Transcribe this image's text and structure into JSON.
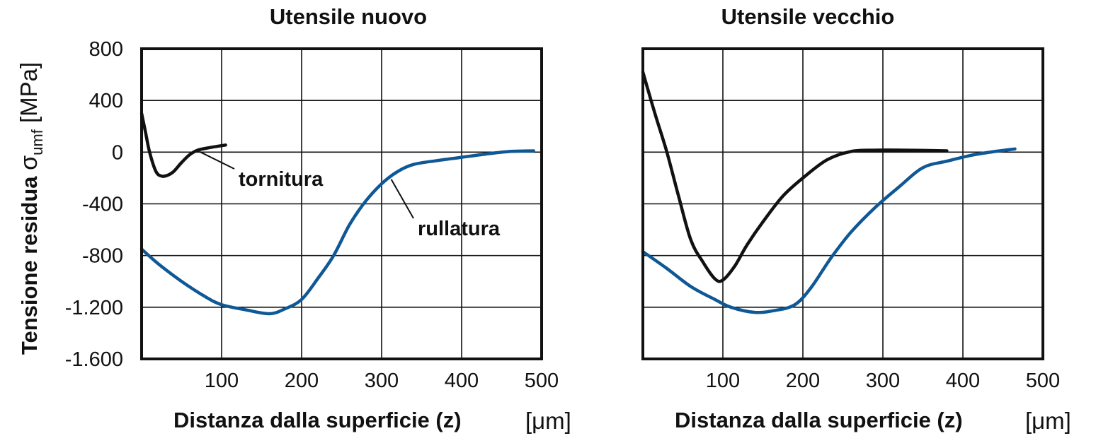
{
  "y_axis": {
    "label_main": "Tensione residua ",
    "label_sigma": "σ",
    "label_sub": "umf",
    "label_unit": " [MPa]"
  },
  "chart_data": [
    {
      "type": "line",
      "title": "Utensile nuovo",
      "xlabel": "Distanza dalla superficie (z)",
      "xunit": "[μm]",
      "xlim": [
        0,
        500
      ],
      "ylim": [
        -1600,
        800
      ],
      "x_ticks": [
        100,
        200,
        300,
        400,
        500
      ],
      "x_tick_labels": [
        "100",
        "200",
        "300",
        "400",
        "500"
      ],
      "y_ticks": [
        800,
        400,
        0,
        -400,
        -800,
        -1200,
        -1600
      ],
      "y_tick_labels": [
        "800",
        "400",
        "0",
        "-400",
        "-800",
        "-1.200",
        "-1.600"
      ],
      "grid": true,
      "series": [
        {
          "name": "tornitura",
          "color": "#111111",
          "points": [
            [
              0,
              300
            ],
            [
              5,
              150
            ],
            [
              10,
              0
            ],
            [
              18,
              -150
            ],
            [
              25,
              -185
            ],
            [
              32,
              -180
            ],
            [
              40,
              -150
            ],
            [
              50,
              -80
            ],
            [
              60,
              -20
            ],
            [
              70,
              15
            ],
            [
              85,
              35
            ],
            [
              105,
              55
            ]
          ]
        },
        {
          "name": "rullatura",
          "color": "#0f5896",
          "points": [
            [
              0,
              -750
            ],
            [
              20,
              -860
            ],
            [
              50,
              -1000
            ],
            [
              80,
              -1120
            ],
            [
              100,
              -1180
            ],
            [
              130,
              -1220
            ],
            [
              160,
              -1250
            ],
            [
              180,
              -1210
            ],
            [
              200,
              -1140
            ],
            [
              220,
              -980
            ],
            [
              240,
              -800
            ],
            [
              260,
              -560
            ],
            [
              280,
              -380
            ],
            [
              300,
              -245
            ],
            [
              320,
              -150
            ],
            [
              340,
              -95
            ],
            [
              370,
              -65
            ],
            [
              400,
              -40
            ],
            [
              430,
              -15
            ],
            [
              460,
              5
            ],
            [
              490,
              10
            ]
          ]
        }
      ],
      "annotations": [
        {
          "text": "tornitura",
          "target": [
            72,
            5
          ],
          "label_at": [
            337,
            255
          ]
        },
        {
          "text": "rullatura",
          "target": [
            312,
            -210
          ],
          "label_at": [
            590,
            325
          ]
        }
      ]
    },
    {
      "type": "line",
      "title": "Utensile vecchio",
      "xlabel": "Distanza dalla superficie (z)",
      "xunit": "[μm]",
      "xlim": [
        0,
        500
      ],
      "ylim": [
        -1600,
        800
      ],
      "x_ticks": [
        100,
        200,
        300,
        400,
        500
      ],
      "x_tick_labels": [
        "100",
        "200",
        "300",
        "400",
        "500"
      ],
      "y_ticks": [
        800,
        400,
        0,
        -400,
        -800,
        -1200,
        -1600
      ],
      "grid": true,
      "series": [
        {
          "name": "",
          "color": "#111111",
          "points": [
            [
              0,
              620
            ],
            [
              15,
              300
            ],
            [
              30,
              0
            ],
            [
              45,
              -350
            ],
            [
              60,
              -680
            ],
            [
              75,
              -850
            ],
            [
              90,
              -980
            ],
            [
              100,
              -990
            ],
            [
              115,
              -880
            ],
            [
              130,
              -720
            ],
            [
              150,
              -540
            ],
            [
              175,
              -340
            ],
            [
              200,
              -200
            ],
            [
              230,
              -60
            ],
            [
              260,
              5
            ],
            [
              290,
              15
            ],
            [
              330,
              15
            ],
            [
              380,
              10
            ]
          ]
        },
        {
          "name": "",
          "color": "#0f5896",
          "points": [
            [
              0,
              -770
            ],
            [
              30,
              -900
            ],
            [
              60,
              -1040
            ],
            [
              90,
              -1140
            ],
            [
              110,
              -1200
            ],
            [
              140,
              -1240
            ],
            [
              165,
              -1225
            ],
            [
              190,
              -1180
            ],
            [
              210,
              -1050
            ],
            [
              235,
              -820
            ],
            [
              260,
              -620
            ],
            [
              290,
              -430
            ],
            [
              320,
              -270
            ],
            [
              350,
              -120
            ],
            [
              380,
              -70
            ],
            [
              410,
              -25
            ],
            [
              440,
              5
            ],
            [
              465,
              25
            ]
          ]
        }
      ],
      "annotations": []
    }
  ]
}
